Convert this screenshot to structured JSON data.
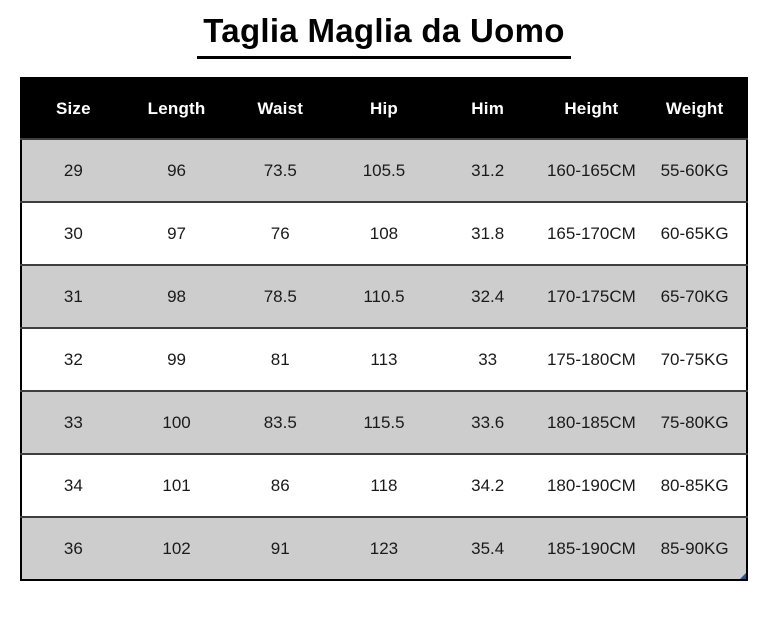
{
  "page": {
    "title": "Taglia Maglia da Uomo"
  },
  "chart_data": {
    "type": "table",
    "title": "Taglia Maglia da Uomo",
    "columns": [
      "Size",
      "Length",
      "Waist",
      "Hip",
      "Him",
      "Height",
      "Weight"
    ],
    "rows": [
      [
        "29",
        "96",
        "73.5",
        "105.5",
        "31.2",
        "160-165CM",
        "55-60KG"
      ],
      [
        "30",
        "97",
        "76",
        "108",
        "31.8",
        "165-170CM",
        "60-65KG"
      ],
      [
        "31",
        "98",
        "78.5",
        "110.5",
        "32.4",
        "170-175CM",
        "65-70KG"
      ],
      [
        "32",
        "99",
        "81",
        "113",
        "33",
        "175-180CM",
        "70-75KG"
      ],
      [
        "33",
        "100",
        "83.5",
        "115.5",
        "33.6",
        "180-185CM",
        "75-80KG"
      ],
      [
        "34",
        "101",
        "86",
        "118",
        "34.2",
        "180-190CM",
        "80-85KG"
      ],
      [
        "36",
        "102",
        "91",
        "123",
        "35.4",
        "185-190CM",
        "85-90KG"
      ]
    ],
    "layout": {
      "first_data_row_shaded": true,
      "alternating_rows": true
    },
    "colors": {
      "header_bg": "#000000",
      "header_text": "#ffffff",
      "row_alt_bg": "#cdcdcd",
      "row_bg": "#ffffff",
      "border": "#3f3f3f",
      "outer_border": "#000000",
      "corner_mark": "#2e4d9e"
    }
  }
}
